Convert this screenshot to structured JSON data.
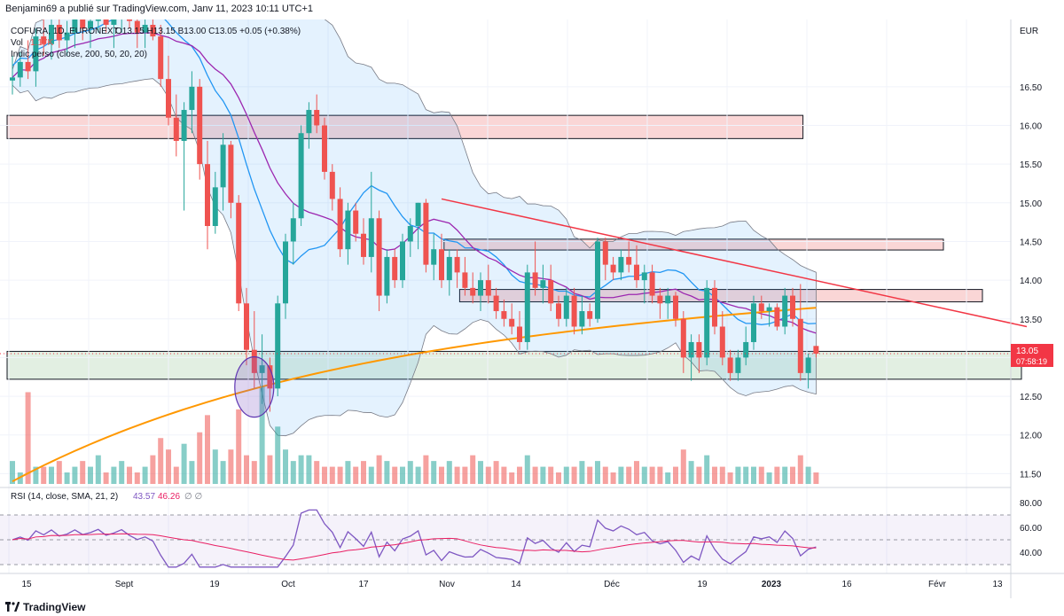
{
  "header": {
    "publisher": "Benjamin69 a publié sur TradingView.com, Janv 11, 2023 10:11 UTC+1"
  },
  "legend": {
    "symbol": "COFURA, 1D, EURONEXT",
    "ohlc": "O13.15  H13.15  B13.00  C13.05  +0.05 (+0.38%)",
    "vol_label": "Vol",
    "vol_value": "1.17K",
    "indicator": "Indic perso (close, 200, 50, 20, 20)"
  },
  "rsi_legend": {
    "label": "RSI (14, close, SMA, 21, 2)",
    "value1": "43.57",
    "value2": "46.26",
    "icons": "∅ ∅"
  },
  "price_badge": {
    "price": "13.05",
    "countdown": "07:58:19",
    "color": "#f23645"
  },
  "footer": {
    "brand": "TradingView",
    "logo": "tradingview-logo"
  },
  "colors": {
    "up": "#26a69a",
    "down": "#ef5350",
    "ma_blue": "#2196f3",
    "ma_purple": "#9c27b0",
    "ma_orange": "#ff9800",
    "trend": "#f23645",
    "band_fill": "#2196f3",
    "rsi_line": "#7e57c2",
    "rsi_sma": "#e91e63",
    "zone_red": "#f8c8c8",
    "zone_green": "#d8ead8"
  },
  "chart_data": {
    "type": "candlestick",
    "currency": "EUR",
    "y_ticks": [
      "16.50",
      "16.00",
      "15.50",
      "15.00",
      "14.50",
      "14.00",
      "13.50",
      "13.00",
      "12.50",
      "12.00",
      "11.50"
    ],
    "ylim": [
      11.47,
      17.3
    ],
    "x_labels": [
      "15",
      "Sept",
      "19",
      "Oct",
      "17",
      "Nov",
      "14",
      "Déc",
      "19",
      "2023",
      "16",
      "Févr",
      "13"
    ],
    "candles": [
      [
        16.58,
        16.9,
        16.4,
        16.62
      ],
      [
        16.62,
        16.95,
        16.5,
        16.82
      ],
      [
        16.82,
        17.1,
        16.6,
        16.7
      ],
      [
        16.7,
        17.25,
        16.5,
        17.15
      ],
      [
        17.15,
        17.4,
        16.9,
        17.05
      ],
      [
        17.05,
        17.5,
        16.85,
        17.3
      ],
      [
        17.3,
        17.5,
        17.0,
        17.1
      ],
      [
        17.1,
        17.35,
        16.9,
        17.2
      ],
      [
        17.2,
        17.6,
        17.0,
        17.4
      ],
      [
        17.4,
        17.6,
        17.1,
        17.25
      ],
      [
        17.25,
        17.55,
        17.0,
        17.35
      ],
      [
        17.35,
        17.7,
        17.2,
        17.5
      ],
      [
        17.5,
        17.7,
        17.2,
        17.3
      ],
      [
        17.3,
        17.5,
        17.0,
        17.4
      ],
      [
        17.4,
        17.7,
        17.2,
        17.55
      ],
      [
        17.55,
        17.75,
        17.25,
        17.35
      ],
      [
        17.35,
        17.5,
        17.0,
        17.2
      ],
      [
        17.2,
        17.45,
        17.0,
        17.3
      ],
      [
        17.3,
        17.5,
        17.1,
        17.15
      ],
      [
        17.15,
        17.3,
        16.5,
        16.6
      ],
      [
        16.6,
        16.9,
        16.0,
        16.1
      ],
      [
        16.1,
        16.4,
        15.6,
        15.8
      ],
      [
        15.8,
        16.3,
        14.9,
        16.2
      ],
      [
        16.2,
        16.7,
        15.9,
        16.5
      ],
      [
        16.5,
        16.6,
        15.3,
        15.5
      ],
      [
        15.5,
        15.8,
        14.4,
        14.7
      ],
      [
        14.7,
        15.4,
        14.6,
        15.2
      ],
      [
        15.2,
        15.9,
        14.9,
        15.75
      ],
      [
        15.75,
        15.8,
        14.8,
        15.0
      ],
      [
        15.0,
        15.1,
        13.6,
        13.7
      ],
      [
        13.7,
        13.9,
        12.9,
        13.1
      ],
      [
        13.1,
        13.6,
        12.6,
        12.8
      ],
      [
        12.8,
        13.3,
        12.4,
        12.9
      ],
      [
        12.9,
        13.0,
        12.3,
        12.6
      ],
      [
        12.6,
        13.8,
        12.5,
        13.7
      ],
      [
        13.7,
        14.6,
        13.5,
        14.5
      ],
      [
        14.5,
        15.0,
        14.2,
        14.8
      ],
      [
        14.8,
        16.0,
        14.7,
        15.9
      ],
      [
        15.9,
        16.3,
        15.7,
        16.2
      ],
      [
        16.2,
        16.4,
        15.9,
        16.0
      ],
      [
        16.0,
        16.1,
        15.3,
        15.4
      ],
      [
        15.4,
        15.5,
        14.9,
        15.05
      ],
      [
        15.05,
        15.2,
        14.3,
        14.4
      ],
      [
        14.4,
        15.0,
        14.2,
        14.9
      ],
      [
        14.9,
        15.0,
        14.5,
        14.6
      ],
      [
        14.6,
        14.8,
        14.2,
        14.3
      ],
      [
        14.3,
        15.4,
        14.1,
        14.8
      ],
      [
        14.8,
        14.9,
        13.6,
        13.8
      ],
      [
        13.8,
        14.4,
        13.7,
        14.3
      ],
      [
        14.3,
        14.4,
        13.9,
        14.0
      ],
      [
        14.0,
        14.6,
        13.9,
        14.5
      ],
      [
        14.5,
        14.8,
        14.3,
        14.7
      ],
      [
        14.7,
        15.0,
        14.4,
        15.0
      ],
      [
        15.0,
        15.05,
        14.1,
        14.2
      ],
      [
        14.2,
        14.6,
        14.0,
        14.4
      ],
      [
        14.4,
        14.6,
        13.9,
        14.0
      ],
      [
        14.0,
        14.4,
        13.8,
        14.3
      ],
      [
        14.3,
        14.4,
        13.9,
        14.1
      ],
      [
        14.1,
        14.3,
        13.8,
        13.9
      ],
      [
        13.9,
        14.1,
        13.7,
        13.8
      ],
      [
        13.8,
        14.1,
        13.6,
        14.0
      ],
      [
        14.0,
        14.2,
        13.7,
        13.8
      ],
      [
        13.8,
        13.9,
        13.5,
        13.6
      ],
      [
        13.6,
        13.75,
        13.4,
        13.5
      ],
      [
        13.5,
        13.7,
        13.3,
        13.4
      ],
      [
        13.4,
        13.6,
        13.1,
        13.2
      ],
      [
        13.2,
        14.2,
        13.1,
        14.1
      ],
      [
        14.1,
        14.5,
        13.8,
        13.9
      ],
      [
        13.9,
        14.2,
        13.7,
        14.0
      ],
      [
        14.0,
        14.2,
        13.6,
        13.7
      ],
      [
        13.7,
        13.8,
        13.4,
        13.5
      ],
      [
        13.5,
        13.9,
        13.4,
        13.8
      ],
      [
        13.8,
        13.9,
        13.3,
        13.4
      ],
      [
        13.4,
        13.8,
        13.3,
        13.6
      ],
      [
        13.6,
        13.7,
        13.4,
        13.5
      ],
      [
        13.5,
        14.55,
        13.45,
        14.5
      ],
      [
        14.5,
        14.55,
        14.0,
        14.2
      ],
      [
        14.2,
        14.3,
        14.0,
        14.1
      ],
      [
        14.1,
        14.4,
        14.0,
        14.3
      ],
      [
        14.3,
        14.5,
        14.1,
        14.2
      ],
      [
        14.2,
        14.45,
        13.9,
        14.0
      ],
      [
        14.0,
        14.2,
        13.7,
        14.1
      ],
      [
        14.1,
        14.2,
        13.7,
        13.8
      ],
      [
        13.8,
        13.9,
        13.5,
        13.7
      ],
      [
        13.7,
        13.9,
        13.5,
        13.8
      ],
      [
        13.8,
        13.85,
        13.4,
        13.5
      ],
      [
        13.5,
        13.6,
        12.8,
        13.0
      ],
      [
        13.0,
        13.3,
        12.7,
        13.2
      ],
      [
        13.2,
        13.3,
        12.8,
        13.0
      ],
      [
        13.0,
        14.0,
        12.9,
        13.9
      ],
      [
        13.9,
        14.0,
        13.3,
        13.4
      ],
      [
        13.4,
        13.6,
        12.9,
        13.0
      ],
      [
        13.0,
        13.1,
        12.7,
        12.8
      ],
      [
        12.8,
        13.1,
        12.7,
        13.0
      ],
      [
        13.0,
        13.4,
        12.9,
        13.2
      ],
      [
        13.2,
        13.8,
        13.1,
        13.7
      ],
      [
        13.7,
        13.8,
        13.5,
        13.6
      ],
      [
        13.6,
        13.7,
        13.4,
        13.65
      ],
      [
        13.65,
        13.7,
        13.35,
        13.4
      ],
      [
        13.4,
        13.9,
        13.3,
        13.8
      ],
      [
        13.8,
        13.9,
        13.4,
        13.5
      ],
      [
        13.5,
        13.95,
        12.7,
        12.8
      ],
      [
        12.8,
        13.05,
        12.6,
        13.0
      ],
      [
        13.15,
        13.15,
        13.0,
        13.05
      ]
    ],
    "volume": [
      0.04,
      0.02,
      0.16,
      0.03,
      0.03,
      0.03,
      0.04,
      0.02,
      0.03,
      0.04,
      0.03,
      0.05,
      0.02,
      0.03,
      0.04,
      0.03,
      0.02,
      0.03,
      0.05,
      0.08,
      0.06,
      0.03,
      0.07,
      0.04,
      0.09,
      0.12,
      0.06,
      0.04,
      0.06,
      0.13,
      0.05,
      0.04,
      0.17,
      0.05,
      0.1,
      0.06,
      0.04,
      0.05,
      0.05,
      0.04,
      0.03,
      0.03,
      0.03,
      0.04,
      0.03,
      0.04,
      0.03,
      0.05,
      0.04,
      0.03,
      0.03,
      0.04,
      0.03,
      0.05,
      0.04,
      0.03,
      0.04,
      0.03,
      0.03,
      0.05,
      0.04,
      0.03,
      0.04,
      0.03,
      0.02,
      0.03,
      0.05,
      0.03,
      0.03,
      0.03,
      0.02,
      0.03,
      0.03,
      0.04,
      0.03,
      0.04,
      0.03,
      0.02,
      0.03,
      0.03,
      0.04,
      0.03,
      0.03,
      0.03,
      0.02,
      0.03,
      0.06,
      0.04,
      0.03,
      0.05,
      0.03,
      0.03,
      0.02,
      0.03,
      0.03,
      0.03,
      0.03,
      0.02,
      0.03,
      0.03,
      0.03,
      0.05,
      0.03,
      0.02
    ],
    "zones": [
      {
        "name": "resistance-zone-1",
        "y1": 16.13,
        "y2": 15.83,
        "from": 0,
        "to": 102,
        "color": "#f8c8c8"
      },
      {
        "name": "resistance-zone-2",
        "y1": 14.53,
        "y2": 14.39,
        "from": 56,
        "to": 120,
        "color": "#f8c8c8"
      },
      {
        "name": "resistance-zone-3",
        "y1": 13.88,
        "y2": 13.72,
        "from": 58,
        "to": 125,
        "color": "#f8c8c8"
      },
      {
        "name": "support-zone",
        "y1": 13.08,
        "y2": 12.72,
        "from": 0,
        "to": 130,
        "color": "#d8ead8"
      }
    ],
    "trendline": [
      [
        55,
        15.05
      ],
      [
        130,
        13.4
      ]
    ],
    "rsi": {
      "ylim": [
        30,
        80
      ],
      "levels": [
        70,
        50,
        30
      ],
      "ticks": [
        "80.00",
        "60.00",
        "40.00"
      ]
    }
  }
}
